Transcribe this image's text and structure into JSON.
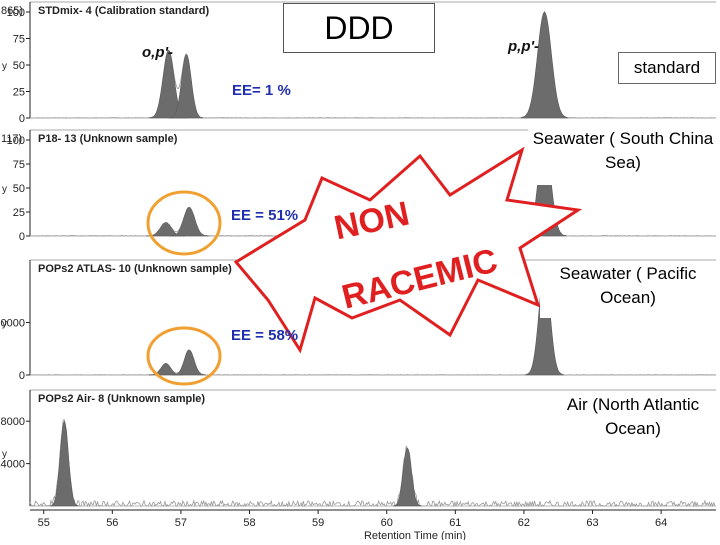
{
  "chart_data": {
    "type": "line",
    "xlabel": "Retention Time (min)",
    "xlim": [
      54.8,
      64.8
    ],
    "x_ticks": [
      "55",
      "56",
      "57",
      "58",
      "59",
      "60",
      "61",
      "62",
      "63",
      "64"
    ],
    "x_tick_values": [
      55,
      56,
      57,
      58,
      59,
      60,
      61,
      62,
      63,
      64
    ],
    "panels": [
      {
        "title": "STDmix- 4 (Calibration standard)",
        "corner_label": "865)",
        "ylim": [
          0,
          100
        ],
        "y_ticks": [
          "100",
          "75",
          "50",
          "25",
          "0"
        ],
        "y_tick_values": [
          100,
          75,
          50,
          25,
          0
        ],
        "peaks": [
          [
            56.82,
            64,
            0.08
          ],
          [
            57.08,
            60,
            0.07
          ],
          [
            62.3,
            100,
            0.1
          ]
        ],
        "noise": 0.6
      },
      {
        "title": "P18- 13 (Unknown sample)",
        "corner_label": "117)",
        "ylim": [
          0,
          100
        ],
        "y_ticks": [
          "100",
          "75",
          "50",
          "25",
          "0"
        ],
        "y_tick_values": [
          100,
          75,
          50,
          25,
          0
        ],
        "peaks": [
          [
            56.78,
            14,
            0.08
          ],
          [
            57.12,
            30,
            0.08
          ],
          [
            62.3,
            100,
            0.09
          ]
        ],
        "noise": 0.8
      },
      {
        "title": "POPs2 ATLAS- 10 (Unknown sample)",
        "corner_label": "",
        "ylim": [
          0,
          100
        ],
        "y_ticks": [
          "0000",
          "0"
        ],
        "y_tick_values": [
          50,
          0
        ],
        "peaks": [
          [
            56.78,
            11,
            0.07
          ],
          [
            57.12,
            24,
            0.07
          ],
          [
            62.3,
            100,
            0.08
          ]
        ],
        "noise": 0.6
      },
      {
        "title": "POPs2 Air- 8 (Unknown sample)",
        "corner_label": "",
        "ylim": [
          0,
          100
        ],
        "y_ticks": [
          "8000",
          "4000"
        ],
        "y_tick_values": [
          80,
          40
        ],
        "peaks": [
          [
            55.3,
            80,
            0.06
          ],
          [
            60.3,
            55,
            0.06
          ]
        ],
        "noise": 7
      }
    ]
  },
  "title_box": "DDD",
  "iso_op": "o,p'-",
  "iso_pp": "p,p'-",
  "ee_1": "EE= 1 %",
  "ee_2": "EE = 51%",
  "ee_3": "EE = 58%",
  "burst_line1": "NON",
  "burst_line2": "RACEMIC",
  "labels": {
    "standard": "standard",
    "sea_scs": "Seawater ( South China Sea)",
    "sea_pac": "Seawater ( Pacific Ocean)",
    "air_atl": "Air (North Atlantic Ocean)"
  },
  "y_axis_letter": "y",
  "colors": {
    "peak": "#6c6c6c",
    "trace": "#999999",
    "axis": "#222222",
    "annotation": "#1f2fb0",
    "circle": "#f0a030",
    "burst_fill": "#ffffff",
    "burst_stroke": "#e02020",
    "burst_text": "#e02020"
  }
}
